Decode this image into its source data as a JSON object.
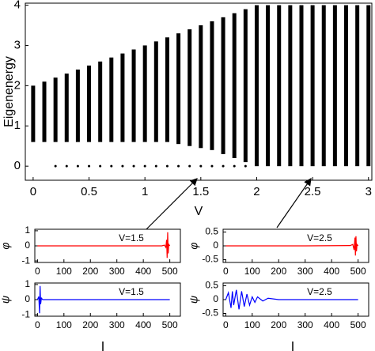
{
  "chart_data": [
    {
      "type": "range",
      "xlabel": "V",
      "ylabel": "Eigenenergy",
      "color": "#000000",
      "x": [
        0,
        0.1,
        0.2,
        0.3,
        0.4,
        0.5,
        0.6,
        0.7,
        0.8,
        0.9,
        1,
        1.1,
        1.2,
        1.3,
        1.4,
        1.5,
        1.6,
        1.7,
        1.8,
        1.9,
        2,
        2.1,
        2.2,
        2.3,
        2.4,
        2.5,
        2.6,
        2.7,
        2.8,
        2.9,
        3
      ],
      "low": [
        0.6,
        0.6,
        0.6,
        0.6,
        0.6,
        0.6,
        0.6,
        0.6,
        0.6,
        0.6,
        0.6,
        0.6,
        0.6,
        0.55,
        0.5,
        0.45,
        0.4,
        0.3,
        0.2,
        0.1,
        0,
        0,
        0,
        0,
        0,
        0,
        0,
        0,
        0,
        0,
        0
      ],
      "high": [
        2,
        2.1,
        2.2,
        2.3,
        2.4,
        2.5,
        2.6,
        2.7,
        2.8,
        2.9,
        3,
        3.1,
        3.2,
        3.3,
        3.4,
        3.5,
        3.6,
        3.7,
        3.8,
        3.9,
        4,
        4,
        4,
        4,
        4,
        4,
        4,
        4,
        4,
        4,
        4
      ],
      "isolated": [
        null,
        null,
        0,
        0,
        0,
        0,
        0,
        0,
        0,
        0,
        0,
        0,
        0,
        0,
        0,
        0,
        0,
        0,
        0,
        0,
        null,
        null,
        null,
        null,
        null,
        null,
        null,
        null,
        null,
        null,
        null
      ],
      "xlim": [
        -0.07,
        3.03
      ],
      "ylim": [
        -0.35,
        4.05
      ],
      "xticks": [
        0,
        0.5,
        1,
        1.5,
        2,
        2.5,
        3
      ],
      "yticks": [
        0,
        1,
        2,
        3,
        4
      ]
    },
    {
      "type": "line",
      "ylabel": "φ",
      "annotation": "V=1.5",
      "color": "#ff0000",
      "x": [
        0,
        470,
        480,
        485,
        488,
        490,
        492,
        494,
        496,
        500
      ],
      "values": [
        0,
        0,
        0.05,
        -0.1,
        0.4,
        -0.8,
        0.9,
        -0.5,
        0.1,
        0
      ],
      "xlim": [
        -10,
        540
      ],
      "ylim": [
        -1.1,
        1.1
      ],
      "xticks": [
        0,
        100,
        200,
        300,
        400,
        500
      ],
      "yticks": [
        -1,
        0,
        1
      ]
    },
    {
      "type": "line",
      "ylabel": "φ",
      "annotation": "V=2.5",
      "color": "#ff0000",
      "x": [
        0,
        300,
        470,
        480,
        485,
        488,
        490,
        492,
        494,
        496,
        500
      ],
      "values": [
        0,
        0,
        0.01,
        0.05,
        -0.15,
        0.3,
        -0.35,
        0.35,
        -0.2,
        0.05,
        0
      ],
      "xlim": [
        -10,
        540
      ],
      "ylim": [
        -0.6,
        0.6
      ],
      "xticks": [
        0,
        100,
        200,
        300,
        400,
        500
      ],
      "yticks": [
        -0.5,
        0,
        0.5
      ]
    },
    {
      "type": "line",
      "ylabel": "ψ",
      "annotation": "V=1.5",
      "color": "#0000ff",
      "x": [
        0,
        5,
        8,
        10,
        12,
        15,
        20,
        500
      ],
      "values": [
        0,
        0.2,
        -0.9,
        0.9,
        -0.3,
        0.1,
        0,
        0
      ],
      "xlim": [
        -10,
        540
      ],
      "ylim": [
        -1.1,
        1.1
      ],
      "xticks": [
        0,
        100,
        200,
        300,
        400,
        500
      ],
      "yticks": [
        -1,
        0,
        1
      ]
    },
    {
      "type": "line",
      "ylabel": "ψ",
      "annotation": "V=2.5",
      "color": "#0000ff",
      "x": [
        0,
        10,
        20,
        25,
        30,
        40,
        50,
        60,
        70,
        80,
        90,
        100,
        110,
        120,
        140,
        160,
        200,
        500
      ],
      "values": [
        0,
        0.25,
        -0.3,
        0.3,
        -0.2,
        0.35,
        -0.35,
        0.3,
        -0.25,
        0.2,
        -0.2,
        0.1,
        -0.1,
        0.1,
        -0.05,
        0.05,
        0,
        0
      ],
      "xlim": [
        -10,
        540
      ],
      "ylim": [
        -0.6,
        0.6
      ],
      "xticks": [
        0,
        100,
        200,
        300,
        400,
        500
      ],
      "yticks": [
        -0.5,
        0,
        0.5
      ]
    }
  ]
}
